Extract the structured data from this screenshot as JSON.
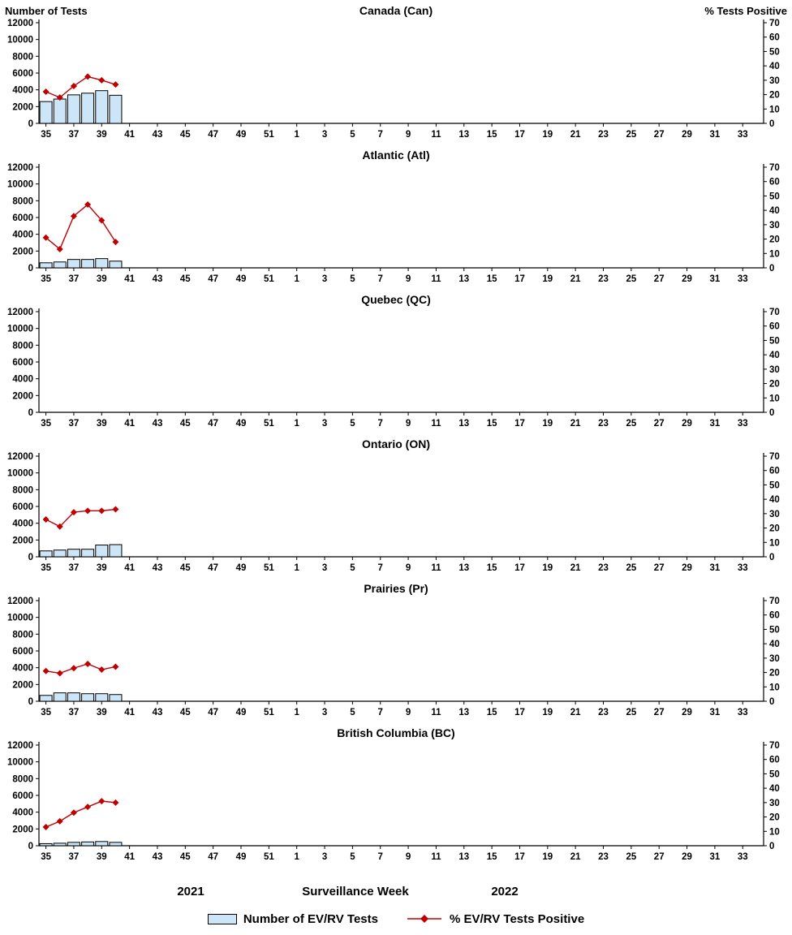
{
  "header": {
    "left_axis_title": "Number of Tests",
    "right_axis_title": "% Tests Positive"
  },
  "x_axis": {
    "label": "Surveillance Week",
    "year_left": "2021",
    "year_right": "2022",
    "tick_labels": [
      "35",
      "37",
      "39",
      "41",
      "43",
      "45",
      "47",
      "49",
      "51",
      "1",
      "3",
      "5",
      "7",
      "9",
      "11",
      "13",
      "15",
      "17",
      "19",
      "21",
      "23",
      "25",
      "27",
      "29",
      "31",
      "33"
    ]
  },
  "y_axis": {
    "left_ticks": [
      "0",
      "2000",
      "4000",
      "6000",
      "8000",
      "10000",
      "12000"
    ],
    "right_ticks": [
      "0",
      "10",
      "20",
      "30",
      "40",
      "50",
      "60",
      "70"
    ],
    "left_max": 12000,
    "right_max": 70
  },
  "legend": {
    "bar_label": "Number of EV/RV Tests",
    "line_label": "% EV/RV Tests Positive"
  },
  "colors": {
    "bar_fill": "#CDE6F7",
    "bar_stroke": "#000000",
    "line": "#C00000",
    "axis": "#000000"
  },
  "chart_data": [
    {
      "type": "bar",
      "title": "Canada (Can)",
      "x": [
        35,
        36,
        37,
        38,
        39,
        40
      ],
      "xlabel": "Surveillance Week",
      "ylabel_left": "Number of Tests",
      "ylabel_right": "% Tests Positive",
      "ylim_left": [
        0,
        12000
      ],
      "ylim_right": [
        0,
        70
      ],
      "series": [
        {
          "name": "Number of EV/RV Tests",
          "type": "bar",
          "axis": "left",
          "values": [
            2600,
            2900,
            3400,
            3600,
            3900,
            3350
          ]
        },
        {
          "name": "% EV/RV Tests Positive",
          "type": "line",
          "axis": "right",
          "values": [
            22,
            18,
            26,
            32.5,
            30,
            27
          ]
        }
      ]
    },
    {
      "type": "bar",
      "title": "Atlantic (Atl)",
      "x": [
        35,
        36,
        37,
        38,
        39,
        40
      ],
      "ylim_left": [
        0,
        12000
      ],
      "ylim_right": [
        0,
        70
      ],
      "series": [
        {
          "name": "Number of EV/RV Tests",
          "type": "bar",
          "axis": "left",
          "values": [
            600,
            700,
            1000,
            1000,
            1100,
            800
          ]
        },
        {
          "name": "% EV/RV Tests Positive",
          "type": "line",
          "axis": "right",
          "values": [
            21,
            13,
            36,
            44,
            33,
            18
          ]
        }
      ]
    },
    {
      "type": "bar",
      "title": "Quebec (QC)",
      "x": [],
      "ylim_left": [
        0,
        12000
      ],
      "ylim_right": [
        0,
        70
      ],
      "series": [
        {
          "name": "Number of EV/RV Tests",
          "type": "bar",
          "axis": "left",
          "values": []
        },
        {
          "name": "% EV/RV Tests Positive",
          "type": "line",
          "axis": "right",
          "values": []
        }
      ]
    },
    {
      "type": "bar",
      "title": "Ontario (ON)",
      "x": [
        35,
        36,
        37,
        38,
        39,
        40
      ],
      "ylim_left": [
        0,
        12000
      ],
      "ylim_right": [
        0,
        70
      ],
      "series": [
        {
          "name": "Number of EV/RV Tests",
          "type": "bar",
          "axis": "left",
          "values": [
            700,
            800,
            900,
            900,
            1400,
            1450
          ]
        },
        {
          "name": "% EV/RV Tests Positive",
          "type": "line",
          "axis": "right",
          "values": [
            26,
            21,
            31,
            32,
            32,
            33
          ]
        }
      ]
    },
    {
      "type": "bar",
      "title": "Prairies (Pr)",
      "x": [
        35,
        36,
        37,
        38,
        39,
        40
      ],
      "ylim_left": [
        0,
        12000
      ],
      "ylim_right": [
        0,
        70
      ],
      "series": [
        {
          "name": "Number of EV/RV Tests",
          "type": "bar",
          "axis": "left",
          "values": [
            700,
            1000,
            1000,
            900,
            900,
            800
          ]
        },
        {
          "name": "% EV/RV Tests Positive",
          "type": "line",
          "axis": "right",
          "values": [
            21,
            19.5,
            23,
            26,
            22,
            24
          ]
        }
      ]
    },
    {
      "type": "bar",
      "title": "British Columbia (BC)",
      "x": [
        35,
        36,
        37,
        38,
        39,
        40
      ],
      "ylim_left": [
        0,
        12000
      ],
      "ylim_right": [
        0,
        70
      ],
      "series": [
        {
          "name": "Number of EV/RV Tests",
          "type": "bar",
          "axis": "left",
          "values": [
            250,
            300,
            400,
            450,
            500,
            400
          ]
        },
        {
          "name": "% EV/RV Tests Positive",
          "type": "line",
          "axis": "right",
          "values": [
            13,
            17,
            23,
            27,
            31,
            30
          ]
        }
      ]
    }
  ]
}
